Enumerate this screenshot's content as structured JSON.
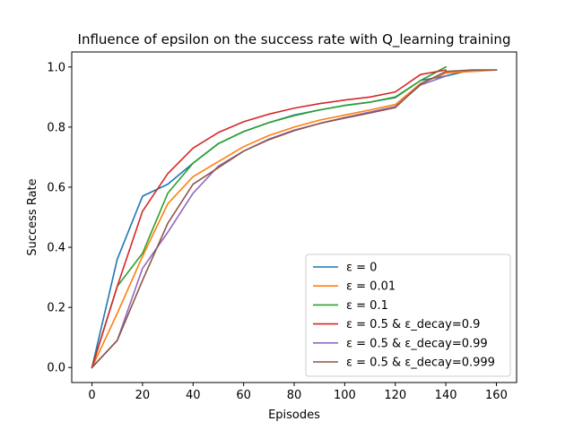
{
  "chart_data": {
    "type": "line",
    "title": "Influence of epsilon on the success rate with Q_learning training",
    "xlabel": "Episodes",
    "ylabel": "Success Rate",
    "xlim": [
      -8,
      168
    ],
    "ylim": [
      -0.05,
      1.05
    ],
    "xticks": [
      0,
      20,
      40,
      60,
      80,
      100,
      120,
      140,
      160
    ],
    "yticks": [
      0.0,
      0.2,
      0.4,
      0.6,
      0.8,
      1.0
    ],
    "xtick_labels": [
      "0",
      "20",
      "40",
      "60",
      "80",
      "100",
      "120",
      "140",
      "160"
    ],
    "ytick_labels": [
      "0.0",
      "0.2",
      "0.4",
      "0.6",
      "0.8",
      "1.0"
    ],
    "grid": false,
    "legend_position": "lower-right",
    "series": [
      {
        "name": "ε = 0",
        "color": "#1f77b4",
        "x": [
          0,
          10,
          20,
          30,
          40,
          50,
          60,
          70,
          80,
          90,
          100,
          110,
          120,
          130,
          140,
          150,
          160
        ],
        "y": [
          0.0,
          0.36,
          0.57,
          0.61,
          0.68,
          0.745,
          0.785,
          0.815,
          0.84,
          0.857,
          0.872,
          0.883,
          0.898,
          0.955,
          0.97,
          0.99,
          0.99
        ]
      },
      {
        "name": "ε = 0.01",
        "color": "#ff7f0e",
        "x": [
          0,
          10,
          20,
          30,
          40,
          50,
          60,
          70,
          80,
          90,
          100,
          110,
          120,
          130,
          140,
          150,
          160
        ],
        "y": [
          0.0,
          0.18,
          0.37,
          0.545,
          0.635,
          0.685,
          0.735,
          0.772,
          0.8,
          0.823,
          0.84,
          0.857,
          0.875,
          0.945,
          0.98,
          0.985,
          0.99
        ]
      },
      {
        "name": "ε = 0.1",
        "color": "#2ca02c",
        "x": [
          0,
          10,
          20,
          30,
          40,
          50,
          60,
          70,
          80,
          90,
          100,
          110,
          120,
          130,
          140
        ],
        "y": [
          0.0,
          0.27,
          0.38,
          0.58,
          0.68,
          0.745,
          0.785,
          0.815,
          0.838,
          0.857,
          0.872,
          0.883,
          0.9,
          0.955,
          1.0
        ]
      },
      {
        "name": "ε = 0.5 & ε_decay=0.9",
        "color": "#d62728",
        "x": [
          0,
          10,
          20,
          30,
          40,
          50,
          60,
          70,
          80,
          90,
          100,
          110,
          120,
          130,
          140
        ],
        "y": [
          0.0,
          0.27,
          0.52,
          0.645,
          0.73,
          0.782,
          0.818,
          0.843,
          0.863,
          0.878,
          0.89,
          0.9,
          0.917,
          0.975,
          0.99
        ]
      },
      {
        "name": "ε = 0.5 & ε_decay=0.99",
        "color": "#9467bd",
        "x": [
          0,
          10,
          20,
          30,
          40,
          50,
          60,
          70,
          80,
          90,
          100,
          110,
          120,
          130,
          140
        ],
        "y": [
          0.0,
          0.09,
          0.33,
          0.45,
          0.58,
          0.67,
          0.72,
          0.76,
          0.79,
          0.812,
          0.832,
          0.85,
          0.868,
          0.94,
          0.97
        ]
      },
      {
        "name": "ε = 0.5 & ε_decay=0.999",
        "color": "#8c564b",
        "x": [
          0,
          10,
          20,
          30,
          40,
          50,
          60,
          70,
          80,
          90,
          100,
          110,
          120,
          130,
          140,
          150,
          160
        ],
        "y": [
          0.0,
          0.09,
          0.29,
          0.48,
          0.61,
          0.665,
          0.72,
          0.758,
          0.788,
          0.812,
          0.83,
          0.847,
          0.865,
          0.943,
          0.985,
          0.99,
          0.99
        ]
      }
    ]
  }
}
